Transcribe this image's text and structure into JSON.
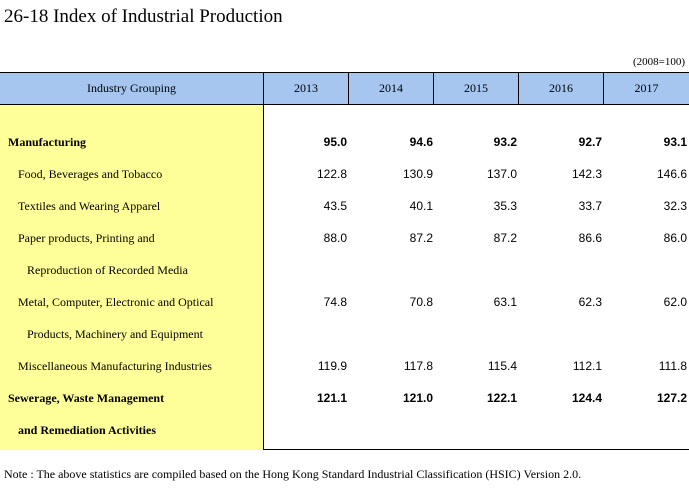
{
  "title": "26-18  Index of Industrial Production",
  "unit_note": "(2008=100)",
  "table": {
    "stub_header": "Industry Grouping",
    "years": [
      "2013",
      "2014",
      "2015",
      "2016",
      "2017"
    ],
    "rows": [
      {
        "label": "Manufacturing",
        "bold": true,
        "indent": false,
        "values": [
          "95.0",
          "94.6",
          "93.2",
          "92.7",
          "93.1"
        ]
      },
      {
        "label": "Food, Beverages and Tobacco",
        "bold": false,
        "indent": true,
        "values": [
          "122.8",
          "130.9",
          "137.0",
          "142.3",
          "146.6"
        ]
      },
      {
        "label": "Textiles and Wearing Apparel",
        "bold": false,
        "indent": true,
        "values": [
          "43.5",
          "40.1",
          "35.3",
          "33.7",
          "32.3"
        ]
      },
      {
        "label": "Paper products, Printing and",
        "continuation": "Reproduction of Recorded Media",
        "bold": false,
        "indent": true,
        "values": [
          "88.0",
          "87.2",
          "87.2",
          "86.6",
          "86.0"
        ]
      },
      {
        "label": "Metal, Computer, Electronic and Optical",
        "continuation": "Products, Machinery and Equipment",
        "bold": false,
        "indent": true,
        "values": [
          "74.8",
          "70.8",
          "63.1",
          "62.3",
          "62.0"
        ]
      },
      {
        "label": "Miscellaneous Manufacturing Industries",
        "bold": false,
        "indent": true,
        "values": [
          "119.9",
          "117.8",
          "115.4",
          "112.1",
          "111.8"
        ]
      },
      {
        "label": "Sewerage, Waste Management",
        "continuation": "and Remediation Activities",
        "bold": true,
        "indent": false,
        "values": [
          "121.1",
          "121.0",
          "122.1",
          "124.4",
          "127.2"
        ]
      }
    ]
  },
  "footnote": "Note : The above statistics are compiled based on the Hong Kong Standard Industrial Classification (HSIC) Version 2.0."
}
